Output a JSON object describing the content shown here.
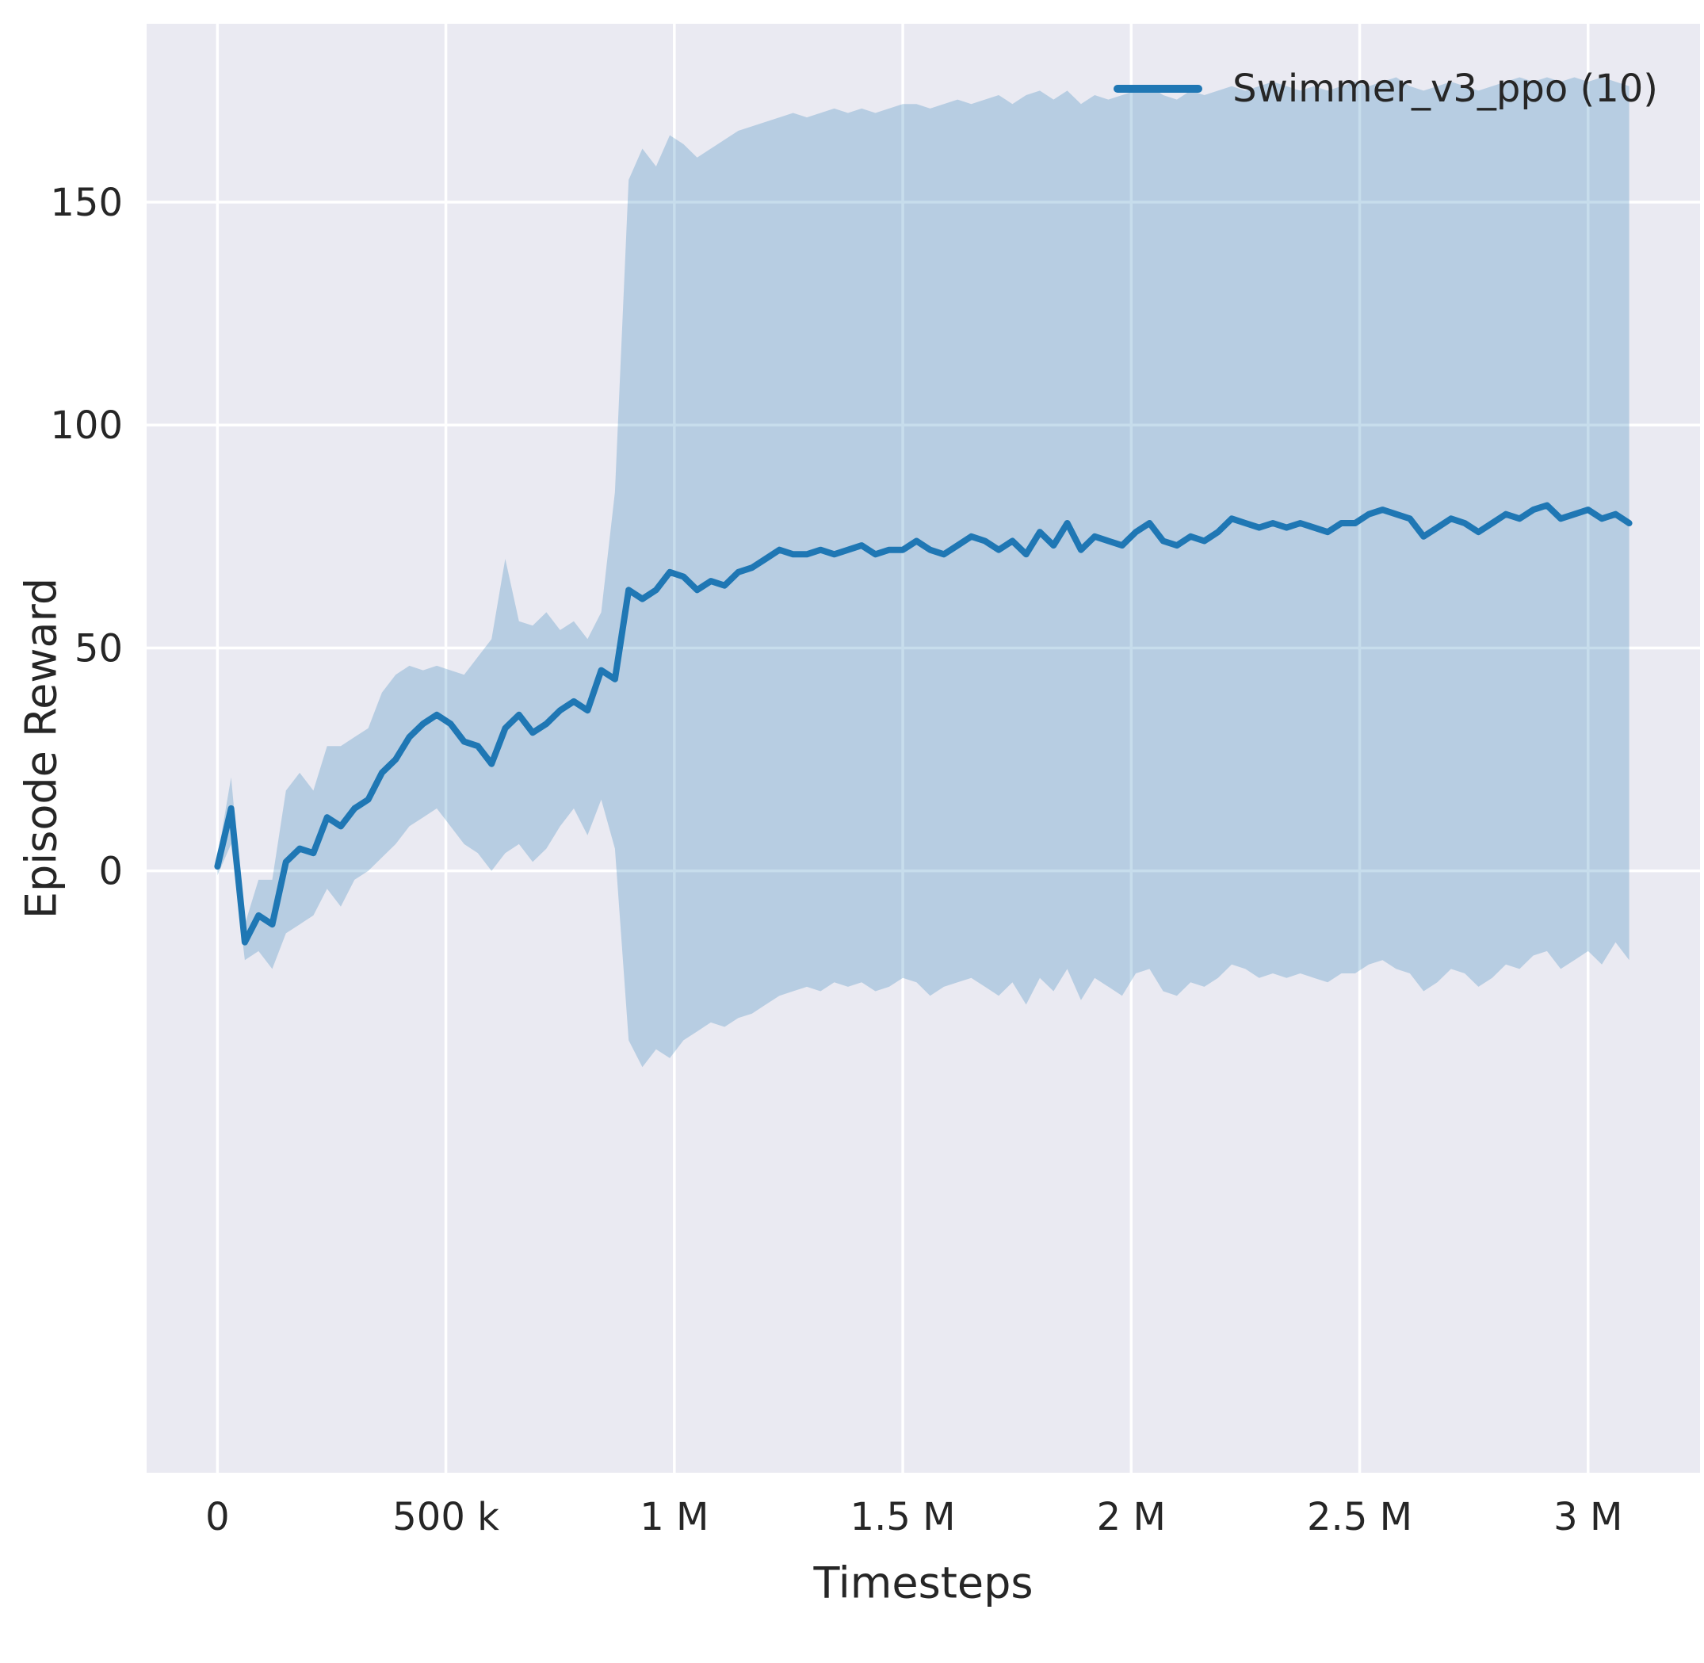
{
  "figure": {
    "background": "#ffffff",
    "plot_background": "#eaeaf2",
    "grid_color": "#ffffff",
    "text_color": "#262626"
  },
  "chart_data": {
    "type": "line",
    "title": "",
    "xlabel": "Timesteps",
    "ylabel": "Episode Reward",
    "grid": true,
    "legend_position": "upper right",
    "xlim": [
      -155000,
      3245000
    ],
    "ylim": [
      -135,
      190
    ],
    "x_ticks": [
      {
        "value": 0,
        "label": "0"
      },
      {
        "value": 500000,
        "label": "500 k"
      },
      {
        "value": 1000000,
        "label": "1 M"
      },
      {
        "value": 1500000,
        "label": "1.5 M"
      },
      {
        "value": 2000000,
        "label": "2 M"
      },
      {
        "value": 2500000,
        "label": "2.5 M"
      },
      {
        "value": 3000000,
        "label": "3 M"
      }
    ],
    "y_ticks": [
      {
        "value": 0,
        "label": "0"
      },
      {
        "value": 50,
        "label": "50"
      },
      {
        "value": 100,
        "label": "100"
      },
      {
        "value": 150,
        "label": "150"
      }
    ],
    "series": [
      {
        "name": "Swimmer_v3_ppo (10)",
        "color": "#1f77b4",
        "band_color": "#1f77b4",
        "band_opacity": 0.25,
        "x": [
          0,
          30000,
          60000,
          90000,
          120000,
          150000,
          180000,
          210000,
          240000,
          270000,
          300000,
          330000,
          360000,
          390000,
          420000,
          450000,
          480000,
          510000,
          540000,
          570000,
          600000,
          630000,
          660000,
          690000,
          720000,
          750000,
          780000,
          810000,
          840000,
          870000,
          900000,
          930000,
          960000,
          990000,
          1020000,
          1050000,
          1080000,
          1110000,
          1140000,
          1170000,
          1200000,
          1230000,
          1260000,
          1290000,
          1320000,
          1350000,
          1380000,
          1410000,
          1440000,
          1470000,
          1500000,
          1530000,
          1560000,
          1590000,
          1620000,
          1650000,
          1680000,
          1710000,
          1740000,
          1770000,
          1800000,
          1830000,
          1860000,
          1890000,
          1920000,
          1950000,
          1980000,
          2010000,
          2040000,
          2070000,
          2100000,
          2130000,
          2160000,
          2190000,
          2220000,
          2250000,
          2280000,
          2310000,
          2340000,
          2370000,
          2400000,
          2430000,
          2460000,
          2490000,
          2520000,
          2550000,
          2580000,
          2610000,
          2640000,
          2670000,
          2700000,
          2730000,
          2760000,
          2790000,
          2820000,
          2850000,
          2880000,
          2910000,
          2940000,
          2970000,
          3000000,
          3030000,
          3060000,
          3090000
        ],
        "mean": [
          1,
          14,
          -16,
          -10,
          -12,
          2,
          5,
          4,
          12,
          10,
          14,
          16,
          22,
          25,
          30,
          33,
          35,
          33,
          29,
          28,
          24,
          32,
          35,
          31,
          33,
          36,
          38,
          36,
          45,
          43,
          63,
          61,
          63,
          67,
          66,
          63,
          65,
          64,
          67,
          68,
          70,
          72,
          71,
          71,
          72,
          71,
          72,
          73,
          71,
          72,
          72,
          74,
          72,
          71,
          73,
          75,
          74,
          72,
          74,
          71,
          76,
          73,
          78,
          72,
          75,
          74,
          73,
          76,
          78,
          74,
          73,
          75,
          74,
          76,
          79,
          78,
          77,
          78,
          77,
          78,
          77,
          76,
          78,
          78,
          80,
          81,
          80,
          79,
          75,
          77,
          79,
          78,
          76,
          78,
          80,
          79,
          81,
          82,
          79,
          80,
          81,
          79,
          80,
          78
        ],
        "lower": [
          -1,
          6,
          -20,
          -18,
          -22,
          -14,
          -12,
          -10,
          -4,
          -8,
          -2,
          0,
          3,
          6,
          10,
          12,
          14,
          10,
          6,
          4,
          0,
          4,
          6,
          2,
          5,
          10,
          14,
          8,
          16,
          5,
          -38,
          -44,
          -40,
          -42,
          -38,
          -36,
          -34,
          -35,
          -33,
          -32,
          -30,
          -28,
          -27,
          -26,
          -27,
          -25,
          -26,
          -25,
          -27,
          -26,
          -24,
          -25,
          -28,
          -26,
          -25,
          -24,
          -26,
          -28,
          -25,
          -30,
          -24,
          -27,
          -22,
          -29,
          -24,
          -26,
          -28,
          -23,
          -22,
          -27,
          -28,
          -25,
          -26,
          -24,
          -21,
          -22,
          -24,
          -23,
          -24,
          -23,
          -24,
          -25,
          -23,
          -23,
          -21,
          -20,
          -22,
          -23,
          -27,
          -25,
          -22,
          -23,
          -26,
          -24,
          -21,
          -22,
          -19,
          -18,
          -22,
          -20,
          -18,
          -21,
          -16,
          -20
        ],
        "upper": [
          3,
          21,
          -12,
          -2,
          -2,
          18,
          22,
          18,
          28,
          28,
          30,
          32,
          40,
          44,
          46,
          45,
          46,
          45,
          44,
          48,
          52,
          70,
          56,
          55,
          58,
          54,
          56,
          52,
          58,
          85,
          155,
          162,
          158,
          165,
          163,
          160,
          162,
          164,
          166,
          167,
          168,
          169,
          170,
          169,
          170,
          171,
          170,
          171,
          170,
          171,
          172,
          172,
          171,
          172,
          173,
          172,
          173,
          174,
          172,
          174,
          175,
          173,
          175,
          172,
          174,
          173,
          174,
          175,
          176,
          174,
          173,
          175,
          174,
          175,
          176,
          175,
          176,
          177,
          176,
          175,
          176,
          175,
          176,
          177,
          176,
          177,
          178,
          176,
          175,
          176,
          177,
          176,
          175,
          176,
          177,
          178,
          177,
          178,
          177,
          178,
          177,
          178,
          177,
          176
        ]
      }
    ]
  }
}
